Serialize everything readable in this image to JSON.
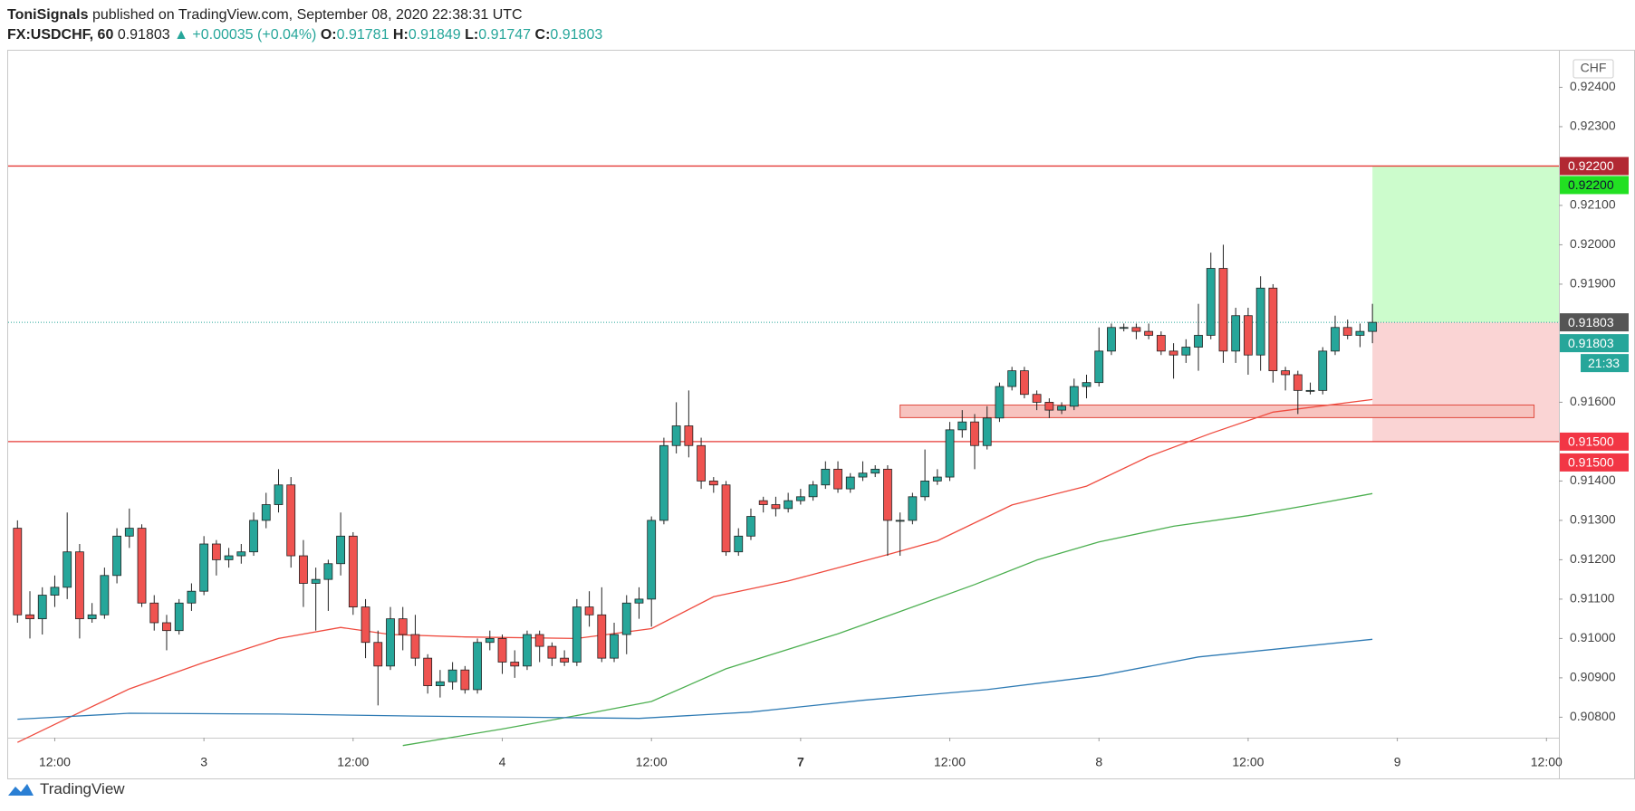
{
  "header": {
    "author": "ToniSignals",
    "published": "published on TradingView.com, September 08, 2020 22:38:31 UTC",
    "symbol": "FX:USDCHF, 60",
    "price": 0.91803,
    "change": "▲ +0.00035 (+0.04%)",
    "ohlc": [
      {
        "label": "O:",
        "value": 0.91781
      },
      {
        "label": "H:",
        "value": 0.91849
      },
      {
        "label": "L:",
        "value": 0.91747
      },
      {
        "label": "C:",
        "value": 0.91803
      }
    ]
  },
  "footer": {
    "brand": "TradingView"
  },
  "chart_data": {
    "type": "candlestick",
    "currency": "CHF",
    "up_color": "#26a69a",
    "down_color": "#ef5350",
    "open": [
      0.9128,
      0.9106,
      0.9105,
      0.9111,
      0.9113,
      0.9122,
      0.9105,
      0.9106,
      0.9116,
      0.9126,
      0.9128,
      0.9109,
      0.9104,
      0.9102,
      0.9109,
      0.9112,
      0.9124,
      0.912,
      0.9121,
      0.9122,
      0.913,
      0.9134,
      0.9139,
      0.9121,
      0.9114,
      0.9115,
      0.9119,
      0.9126,
      0.9108,
      0.9099,
      0.9093,
      0.9105,
      0.9101,
      0.9095,
      0.9088,
      0.9089,
      0.9092,
      0.9087,
      0.9099,
      0.91,
      0.9094,
      0.9093,
      0.9101,
      0.9098,
      0.9095,
      0.9094,
      0.9108,
      0.9106,
      0.9095,
      0.9101,
      0.9109,
      0.911,
      0.913,
      0.9149,
      0.9154,
      0.9149,
      0.914,
      0.9139,
      0.9122,
      0.9126,
      0.9135,
      0.9134,
      0.9133,
      0.9135,
      0.9136,
      0.9139,
      0.9143,
      0.9138,
      0.9141,
      0.9142,
      0.9143,
      0.913,
      0.913,
      0.9136,
      0.914,
      0.9141,
      0.9153,
      0.9155,
      0.9149,
      0.9156,
      0.9164,
      0.9168,
      0.9162,
      0.916,
      0.9158,
      0.9159,
      0.9164,
      0.9165,
      0.9173,
      0.9179,
      0.9179,
      0.9178,
      0.9177,
      0.9173,
      0.9172,
      0.9174,
      0.9177,
      0.9194,
      0.9173,
      0.9182,
      0.9172,
      0.9189,
      0.9168,
      0.9167,
      0.9163,
      0.9163,
      0.9173,
      0.9179,
      0.9177,
      0.9178
    ],
    "high": [
      0.913,
      0.9112,
      0.9113,
      0.9116,
      0.9132,
      0.9124,
      0.9109,
      0.9118,
      0.9128,
      0.9133,
      0.9129,
      0.9111,
      0.9106,
      0.911,
      0.9114,
      0.9126,
      0.9125,
      0.9123,
      0.9124,
      0.9132,
      0.9137,
      0.9143,
      0.9141,
      0.9125,
      0.9118,
      0.912,
      0.9132,
      0.9127,
      0.911,
      0.9102,
      0.9108,
      0.9108,
      0.9106,
      0.9096,
      0.9092,
      0.9094,
      0.9093,
      0.91,
      0.9102,
      0.9101,
      0.9097,
      0.9102,
      0.9102,
      0.9099,
      0.9097,
      0.911,
      0.9112,
      0.9113,
      0.9104,
      0.9111,
      0.9113,
      0.9131,
      0.9151,
      0.916,
      0.9163,
      0.9151,
      0.9141,
      0.914,
      0.9128,
      0.9133,
      0.9136,
      0.9136,
      0.9137,
      0.9138,
      0.914,
      0.9145,
      0.9145,
      0.9142,
      0.9145,
      0.9144,
      0.9144,
      0.9132,
      0.9137,
      0.9148,
      0.9143,
      0.9155,
      0.9158,
      0.9157,
      0.9159,
      0.9165,
      0.9169,
      0.9169,
      0.9163,
      0.9161,
      0.916,
      0.9166,
      0.9167,
      0.9179,
      0.918,
      0.918,
      0.918,
      0.918,
      0.9178,
      0.9175,
      0.9176,
      0.9185,
      0.9198,
      0.92,
      0.9184,
      0.9184,
      0.9192,
      0.919,
      0.9169,
      0.9168,
      0.9165,
      0.9174,
      0.9182,
      0.9181,
      0.918,
      0.9185
    ],
    "low": [
      0.9104,
      0.91,
      0.9101,
      0.9108,
      0.911,
      0.91,
      0.9104,
      0.9105,
      0.9114,
      0.9123,
      0.9108,
      0.9102,
      0.9097,
      0.9101,
      0.9107,
      0.9111,
      0.9116,
      0.9118,
      0.9119,
      0.9121,
      0.9128,
      0.9132,
      0.9118,
      0.9108,
      0.9102,
      0.9107,
      0.9116,
      0.9106,
      0.9095,
      0.9083,
      0.9092,
      0.9097,
      0.9093,
      0.9086,
      0.9085,
      0.9087,
      0.9086,
      0.9086,
      0.9097,
      0.9091,
      0.909,
      0.9092,
      0.9094,
      0.9093,
      0.9093,
      0.9093,
      0.9103,
      0.9094,
      0.9094,
      0.9096,
      0.9105,
      0.9103,
      0.9129,
      0.9147,
      0.9146,
      0.9138,
      0.9137,
      0.9121,
      0.9121,
      0.9125,
      0.9132,
      0.9131,
      0.9132,
      0.9134,
      0.9135,
      0.9138,
      0.9137,
      0.9137,
      0.914,
      0.9141,
      0.9121,
      0.9121,
      0.9129,
      0.9135,
      0.9139,
      0.914,
      0.9151,
      0.9143,
      0.9148,
      0.9155,
      0.9163,
      0.9161,
      0.9158,
      0.9156,
      0.9157,
      0.9158,
      0.9161,
      0.9164,
      0.9172,
      0.9178,
      0.9176,
      0.9176,
      0.9172,
      0.9166,
      0.917,
      0.9168,
      0.9176,
      0.917,
      0.917,
      0.9167,
      0.9168,
      0.9165,
      0.9163,
      0.9157,
      0.9162,
      0.9162,
      0.9172,
      0.9176,
      0.9174,
      0.9175
    ],
    "close": [
      0.9106,
      0.9105,
      0.9111,
      0.9113,
      0.9122,
      0.9105,
      0.9106,
      0.9116,
      0.9126,
      0.9128,
      0.9109,
      0.9104,
      0.9102,
      0.9109,
      0.9112,
      0.9124,
      0.912,
      0.9121,
      0.9122,
      0.913,
      0.9134,
      0.9139,
      0.9121,
      0.9114,
      0.9115,
      0.9119,
      0.9126,
      0.9108,
      0.9099,
      0.9093,
      0.9105,
      0.9101,
      0.9095,
      0.9088,
      0.9089,
      0.9092,
      0.9087,
      0.9099,
      0.91,
      0.9094,
      0.9093,
      0.9101,
      0.9098,
      0.9095,
      0.9094,
      0.9108,
      0.9106,
      0.9095,
      0.9101,
      0.9109,
      0.911,
      0.913,
      0.9149,
      0.9154,
      0.9149,
      0.914,
      0.9139,
      0.9122,
      0.9126,
      0.9131,
      0.9134,
      0.9133,
      0.9135,
      0.9136,
      0.9139,
      0.9143,
      0.9138,
      0.9141,
      0.9142,
      0.9143,
      0.913,
      0.913,
      0.9136,
      0.914,
      0.9141,
      0.9153,
      0.9155,
      0.9149,
      0.9156,
      0.9164,
      0.9168,
      0.9162,
      0.916,
      0.9158,
      0.9159,
      0.9164,
      0.9165,
      0.9173,
      0.9179,
      0.9179,
      0.9178,
      0.9177,
      0.9173,
      0.9172,
      0.9174,
      0.9177,
      0.9194,
      0.9173,
      0.9182,
      0.9172,
      0.9189,
      0.9168,
      0.9167,
      0.9163,
      0.9163,
      0.9173,
      0.9179,
      0.9177,
      0.9178,
      0.91803
    ],
    "series": [
      {
        "color": "#ef4b3f",
        "x": [
          0,
          4,
          9,
          15,
          21,
          26,
          30,
          36,
          45,
          51,
          56,
          62,
          70,
          74,
          80,
          86,
          91,
          96,
          101,
          109
        ],
        "values": [
          0.90736,
          0.90797,
          0.90872,
          0.90939,
          0.91,
          0.91028,
          0.9101,
          0.91004,
          0.91,
          0.91025,
          0.91106,
          0.91146,
          0.91213,
          0.91248,
          0.91339,
          0.91387,
          0.91462,
          0.91521,
          0.91575,
          0.91607
        ]
      },
      {
        "color": "#4caf50",
        "x": [
          31,
          39,
          46,
          51,
          57,
          66,
          70,
          77,
          82,
          87,
          93,
          99,
          104,
          109
        ],
        "values": [
          0.90728,
          0.9077,
          0.9081,
          0.9084,
          0.90923,
          0.91012,
          0.91057,
          0.91137,
          0.91199,
          0.91245,
          0.91285,
          0.91312,
          0.91339,
          0.91368
        ]
      },
      {
        "color": "#2f7bb4",
        "x": [
          0,
          9,
          21,
          32,
          50,
          59,
          68,
          78,
          87,
          95,
          109
        ],
        "values": [
          0.90795,
          0.9081,
          0.90808,
          0.90803,
          0.90797,
          0.90813,
          0.90843,
          0.9087,
          0.90905,
          0.90953,
          0.90998
        ]
      }
    ],
    "levels": [
      {
        "value": 0.922,
        "label": "0.92200",
        "color": "#e53935",
        "label_color": "#b22833"
      },
      {
        "value": 0.915,
        "label": "0.91500",
        "color": "#e53935",
        "label_color": "#f23645"
      }
    ],
    "zone": {
      "start": 71,
      "end": 122,
      "low": 0.91561,
      "high": 0.91593,
      "color": "#f7c3bf",
      "stroke": "#e0493d"
    },
    "position": {
      "start": 109,
      "entry": 0.91803,
      "entry_label": "0.91803",
      "target": 0.922,
      "target_label": "0.92200",
      "stop": 0.915,
      "stop_label": "0.91500",
      "target_color": "#ccfccc",
      "stop_color": "#fad4d4",
      "target_label_color": "#22e022",
      "stop_label_color": "#f23645",
      "entry_label_color": "#555555"
    },
    "last": {
      "value": 0.91803,
      "label": "0.91803",
      "countdown": "21:33",
      "color": "#26a69a"
    },
    "xlim": [
      -0.75,
      124
    ],
    "ylim": [
      0.90748,
      0.92493
    ],
    "xticks": [
      {
        "value": 3,
        "label": "12:00"
      },
      {
        "value": 15,
        "label": "3"
      },
      {
        "value": 27,
        "label": "12:00"
      },
      {
        "value": 39,
        "label": "4"
      },
      {
        "value": 51,
        "label": "12:00"
      },
      {
        "value": 63,
        "label": "7",
        "bold": true
      },
      {
        "value": 75,
        "label": "12:00"
      },
      {
        "value": 87,
        "label": "8"
      },
      {
        "value": 99,
        "label": "12:00"
      },
      {
        "value": 111,
        "label": "9"
      },
      {
        "value": 123,
        "label": "12:00"
      }
    ],
    "yticks": [
      {
        "value": 0.924,
        "label": "0.92400"
      },
      {
        "value": 0.923,
        "label": "0.92300"
      },
      {
        "value": 0.921,
        "label": "0.92100"
      },
      {
        "value": 0.92,
        "label": "0.92000"
      },
      {
        "value": 0.919,
        "label": "0.91900"
      },
      {
        "value": 0.916,
        "label": "0.91600"
      },
      {
        "value": 0.914,
        "label": "0.91400"
      },
      {
        "value": 0.913,
        "label": "0.91300"
      },
      {
        "value": 0.912,
        "label": "0.91200"
      },
      {
        "value": 0.911,
        "label": "0.91100"
      },
      {
        "value": 0.91,
        "label": "0.91000"
      },
      {
        "value": 0.909,
        "label": "0.90900"
      },
      {
        "value": 0.908,
        "label": "0.90800"
      }
    ],
    "grid": false
  }
}
